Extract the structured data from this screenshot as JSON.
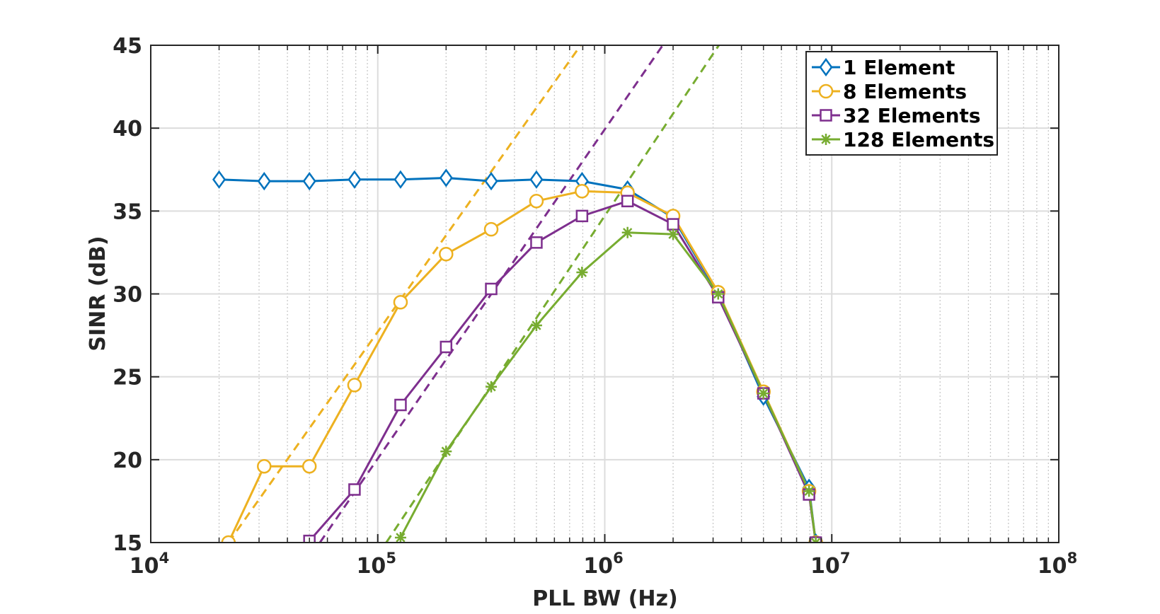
{
  "chart_data": {
    "type": "line",
    "title": "",
    "xlabel": "PLL BW (Hz)",
    "ylabel": "SINR (dB)",
    "xscale": "log",
    "xlim": [
      10000,
      100000000
    ],
    "ylim": [
      15,
      45
    ],
    "grid": true,
    "legend_position": "top-right",
    "x_tick_base": "10",
    "x_ticks": [
      {
        "value": 10000,
        "exp": "4"
      },
      {
        "value": 100000,
        "exp": "5"
      },
      {
        "value": 1000000,
        "exp": "6"
      },
      {
        "value": 10000000,
        "exp": "7"
      },
      {
        "value": 100000000,
        "exp": "8"
      }
    ],
    "y_ticks": [
      {
        "value": 15,
        "label": "15"
      },
      {
        "value": 20,
        "label": "20"
      },
      {
        "value": 25,
        "label": "25"
      },
      {
        "value": 30,
        "label": "30"
      },
      {
        "value": 35,
        "label": "35"
      },
      {
        "value": 40,
        "label": "40"
      },
      {
        "value": 45,
        "label": "45"
      }
    ],
    "series": [
      {
        "name": "1 Element",
        "color": "#0072BD",
        "marker": "diamond",
        "points": [
          [
            20000,
            36.9
          ],
          [
            31600,
            36.8
          ],
          [
            50000,
            36.8
          ],
          [
            79000,
            36.9
          ],
          [
            126000,
            36.9
          ],
          [
            200000,
            37.0
          ],
          [
            316000,
            36.8
          ],
          [
            500000,
            36.9
          ],
          [
            794000,
            36.8
          ],
          [
            1260000,
            36.3
          ],
          [
            2000000,
            34.6
          ],
          [
            3160000,
            30.0
          ],
          [
            5000000,
            23.8
          ],
          [
            7940000,
            18.3
          ],
          [
            8500000,
            15.0
          ]
        ]
      },
      {
        "name": "8 Elements",
        "color": "#EDB120",
        "marker": "circle",
        "points": [
          [
            22000,
            15.0
          ],
          [
            31600,
            19.6
          ],
          [
            50000,
            19.6
          ],
          [
            79000,
            24.5
          ],
          [
            126000,
            29.5
          ],
          [
            200000,
            32.4
          ],
          [
            316000,
            33.9
          ],
          [
            500000,
            35.6
          ],
          [
            794000,
            36.2
          ],
          [
            1260000,
            36.1
          ],
          [
            2000000,
            34.7
          ],
          [
            3160000,
            30.1
          ],
          [
            5000000,
            24.1
          ],
          [
            7940000,
            18.1
          ],
          [
            8500000,
            15.0
          ]
        ]
      },
      {
        "name": "32 Elements",
        "color": "#7E2F8E",
        "marker": "square",
        "points": [
          [
            50000,
            15.1
          ],
          [
            79000,
            18.2
          ],
          [
            126000,
            23.3
          ],
          [
            200000,
            26.8
          ],
          [
            316000,
            30.3
          ],
          [
            500000,
            33.1
          ],
          [
            794000,
            34.7
          ],
          [
            1260000,
            35.6
          ],
          [
            2000000,
            34.2
          ],
          [
            3160000,
            29.8
          ],
          [
            5000000,
            24.0
          ],
          [
            7940000,
            17.9
          ],
          [
            8500000,
            15.0
          ]
        ]
      },
      {
        "name": "128 Elements",
        "color": "#77AC30",
        "marker": "asterisk",
        "points": [
          [
            126000,
            15.3
          ],
          [
            200000,
            20.5
          ],
          [
            316000,
            24.4
          ],
          [
            500000,
            28.1
          ],
          [
            794000,
            31.3
          ],
          [
            1260000,
            33.7
          ],
          [
            2000000,
            33.6
          ],
          [
            3160000,
            30.0
          ],
          [
            5000000,
            24.0
          ],
          [
            7940000,
            18.1
          ],
          [
            8500000,
            15.0
          ]
        ]
      }
    ],
    "reference_lines": [
      {
        "series": "8 Elements",
        "color": "#EDB120",
        "style": "dashed",
        "points": [
          [
            22000,
            15.0
          ],
          [
            783000,
            45.0
          ]
        ]
      },
      {
        "series": "32 Elements",
        "color": "#7E2F8E",
        "style": "dashed",
        "points": [
          [
            55600,
            15.0
          ],
          [
            1800000,
            45.0
          ]
        ]
      },
      {
        "series": "128 Elements",
        "color": "#77AC30",
        "style": "dashed",
        "points": [
          [
            109000,
            15.0
          ],
          [
            3180000,
            45.0
          ]
        ]
      }
    ]
  }
}
